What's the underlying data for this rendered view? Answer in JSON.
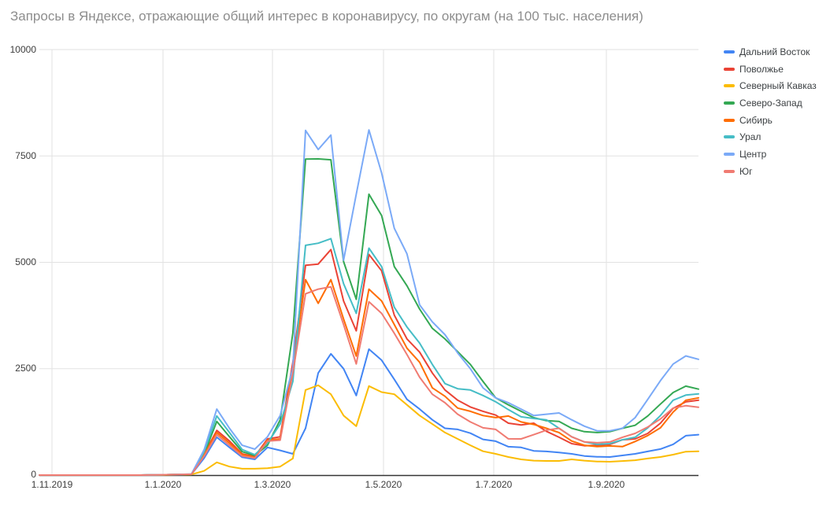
{
  "title": "Запросы в Яндексе, отражающие общий интерес в коронавирусу, по округам (на 100 тыс. населения)",
  "colors": {
    "background": "#ffffff",
    "title_text": "#8d8d8d",
    "tick_text": "#3d3d3d",
    "legend_text": "#3c4043",
    "gridline": "#e2e2e2",
    "axis_line": "#333333"
  },
  "chart_data": {
    "type": "line",
    "title": "Запросы в Яндексе, отражающие общий интерес в коронавирусу, по округам (на 100 тыс. населения)",
    "xlabel": "",
    "ylabel": "",
    "ylim": [
      0,
      10000
    ],
    "grid": true,
    "legend_position": "right",
    "y_ticks": [
      "0",
      "2500",
      "5000",
      "7500",
      "10000"
    ],
    "x_axis_ticks": [
      "1.11.2019",
      "1.1.2020",
      "1.3.2020",
      "1.5.2020",
      "1.7.2020",
      "1.9.2020"
    ],
    "x": [
      "25.10.2019",
      "1.11.2019",
      "8.11.2019",
      "15.11.2019",
      "22.11.2019",
      "29.11.2019",
      "6.12.2019",
      "13.12.2019",
      "20.12.2019",
      "27.12.2019",
      "3.1.2020",
      "10.1.2020",
      "17.1.2020",
      "24.1.2020",
      "31.1.2020",
      "7.2.2020",
      "14.2.2020",
      "21.2.2020",
      "28.2.2020",
      "6.3.2020",
      "13.3.2020",
      "20.3.2020",
      "27.3.2020",
      "3.4.2020",
      "10.4.2020",
      "17.4.2020",
      "24.4.2020",
      "1.5.2020",
      "8.5.2020",
      "15.5.2020",
      "22.5.2020",
      "29.5.2020",
      "5.6.2020",
      "12.6.2020",
      "19.6.2020",
      "26.6.2020",
      "3.7.2020",
      "10.7.2020",
      "17.7.2020",
      "24.7.2020",
      "31.7.2020",
      "7.8.2020",
      "14.8.2020",
      "21.8.2020",
      "28.8.2020",
      "4.9.2020",
      "11.9.2020",
      "18.9.2020",
      "25.9.2020",
      "2.10.2020",
      "9.10.2020",
      "16.10.2020",
      "23.10.2020"
    ],
    "series": [
      {
        "name": "Дальний Восток",
        "color": "#4285F4",
        "values": [
          0,
          0,
          0,
          0,
          0,
          0,
          0,
          0,
          0,
          5,
          10,
          15,
          20,
          400,
          890,
          650,
          420,
          370,
          650,
          580,
          500,
          1100,
          2400,
          2850,
          2500,
          1870,
          2960,
          2700,
          2250,
          1780,
          1550,
          1300,
          1100,
          1074,
          985,
          840,
          796,
          667,
          650,
          570,
          556,
          530,
          500,
          450,
          430,
          426,
          463,
          500,
          556,
          611,
          722,
          926,
          950
        ]
      },
      {
        "name": "Поволжье",
        "color": "#EA4335",
        "values": [
          0,
          0,
          0,
          0,
          0,
          0,
          0,
          0,
          0,
          5,
          10,
          15,
          20,
          500,
          1050,
          800,
          500,
          440,
          850,
          900,
          2650,
          4930,
          4960,
          5300,
          4093,
          3390,
          5185,
          4800,
          3760,
          3200,
          2890,
          2400,
          2000,
          1760,
          1600,
          1500,
          1410,
          1220,
          1180,
          1220,
          1030,
          890,
          740,
          690,
          700,
          720,
          830,
          850,
          980,
          1220,
          1570,
          1720,
          1760
        ]
      },
      {
        "name": "Северный Кавказ",
        "color": "#FBBC04",
        "values": [
          0,
          0,
          0,
          0,
          0,
          0,
          0,
          0,
          0,
          0,
          5,
          10,
          15,
          100,
          300,
          200,
          150,
          150,
          160,
          200,
          390,
          2000,
          2110,
          1900,
          1400,
          1150,
          2093,
          1950,
          1900,
          1650,
          1400,
          1200,
          1000,
          850,
          700,
          560,
          500,
          426,
          370,
          340,
          333,
          333,
          370,
          340,
          320,
          315,
          330,
          350,
          390,
          426,
          480,
          550,
          560
        ]
      },
      {
        "name": "Северо-Запад",
        "color": "#34A853",
        "values": [
          0,
          0,
          0,
          0,
          0,
          0,
          0,
          0,
          0,
          5,
          10,
          15,
          20,
          500,
          1260,
          900,
          550,
          460,
          700,
          1300,
          3340,
          7426,
          7430,
          7410,
          5019,
          4130,
          6600,
          6100,
          4900,
          4450,
          3900,
          3450,
          3200,
          2900,
          2600,
          2200,
          1815,
          1650,
          1500,
          1350,
          1280,
          1260,
          1100,
          1020,
          1000,
          1020,
          1100,
          1170,
          1390,
          1670,
          1940,
          2090,
          2020
        ]
      },
      {
        "name": "Сибирь",
        "color": "#FF6D01",
        "values": [
          0,
          0,
          0,
          0,
          0,
          0,
          0,
          0,
          0,
          5,
          10,
          15,
          20,
          480,
          1000,
          750,
          480,
          420,
          820,
          850,
          2500,
          4593,
          4037,
          4593,
          3667,
          2796,
          4370,
          4093,
          3537,
          2981,
          2650,
          2050,
          1852,
          1574,
          1500,
          1400,
          1352,
          1389,
          1250,
          1190,
          1100,
          1000,
          800,
          700,
          670,
          685,
          670,
          790,
          930,
          1110,
          1480,
          1760,
          1815
        ]
      },
      {
        "name": "Урал",
        "color": "#46BDC6",
        "values": [
          0,
          0,
          0,
          0,
          0,
          0,
          0,
          0,
          0,
          5,
          10,
          15,
          20,
          550,
          1390,
          1000,
          600,
          480,
          750,
          1200,
          2200,
          5400,
          5450,
          5556,
          4500,
          3800,
          5333,
          4900,
          3944,
          3481,
          3100,
          2600,
          2150,
          2030,
          2000,
          1870,
          1722,
          1537,
          1370,
          1330,
          1300,
          1100,
          900,
          780,
          722,
          740,
          830,
          890,
          1110,
          1400,
          1760,
          1880,
          1907
        ]
      },
      {
        "name": "Центр",
        "color": "#7BAAF7",
        "values": [
          0,
          0,
          0,
          0,
          0,
          0,
          0,
          0,
          0,
          5,
          10,
          15,
          25,
          600,
          1550,
          1100,
          700,
          610,
          900,
          1400,
          2520,
          8100,
          7650,
          7990,
          5050,
          6600,
          8110,
          7100,
          5800,
          5200,
          4000,
          3600,
          3300,
          2870,
          2500,
          2050,
          1815,
          1700,
          1550,
          1400,
          1430,
          1460,
          1300,
          1150,
          1040,
          1040,
          1100,
          1350,
          1780,
          2220,
          2610,
          2800,
          2720
        ]
      },
      {
        "name": "Юг",
        "color": "#F07B72",
        "values": [
          0,
          0,
          0,
          0,
          0,
          0,
          0,
          0,
          0,
          5,
          10,
          15,
          20,
          450,
          950,
          700,
          450,
          400,
          800,
          820,
          2400,
          4260,
          4370,
          4426,
          3537,
          2611,
          4074,
          3800,
          3333,
          2833,
          2300,
          1900,
          1700,
          1430,
          1250,
          1110,
          1074,
          852,
          850,
          950,
          1056,
          1100,
          900,
          780,
          760,
          778,
          890,
          980,
          1130,
          1320,
          1574,
          1630,
          1593
        ]
      }
    ]
  }
}
